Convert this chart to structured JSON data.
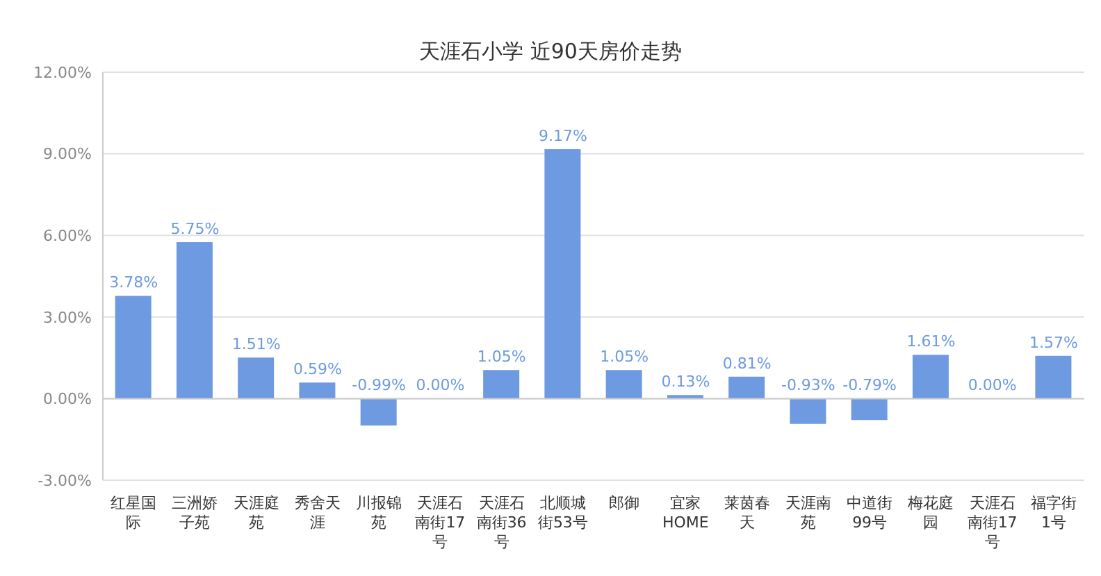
{
  "chart_data": {
    "type": "bar",
    "title": "天涯石小学 近90天房价走势",
    "categories": [
      "红星国际",
      "三洲娇子苑",
      "天涯庭苑",
      "秀舍天涯",
      "川报锦苑",
      "天涯石南街17号",
      "天涯石南街36号",
      "北顺城街53号",
      "郎御",
      "宜家HOME",
      "莱茵春天",
      "天涯南苑",
      "中道街99号",
      "梅花庭园",
      "天涯石南街17号",
      "福字街1号"
    ],
    "values": [
      3.78,
      5.75,
      1.51,
      0.59,
      -0.99,
      0,
      1.05,
      9.17,
      1.05,
      0.13,
      0.81,
      -0.93,
      -0.79,
      1.61,
      0,
      1.57
    ],
    "value_labels": [
      "3.78%",
      "5.75%",
      "1.51%",
      "0.59%",
      "-0.99%",
      "0.00%",
      "1.05%",
      "9.17%",
      "1.05%",
      "0.13%",
      "0.81%",
      "-0.93%",
      "-0.79%",
      "1.61%",
      "0.00%",
      "1.57%"
    ],
    "color": "#6d9ae0",
    "ylim": [
      -3,
      12
    ],
    "yticks": [
      {
        "value": -3,
        "label": "-3.00%"
      },
      {
        "value": 0,
        "label": "0.00%"
      },
      {
        "value": 3,
        "label": "3.00%"
      },
      {
        "value": 6,
        "label": "6.00%"
      },
      {
        "value": 9,
        "label": "9.00%"
      },
      {
        "value": 12,
        "label": "12.00%"
      }
    ],
    "grid": "y",
    "legend": false
  }
}
